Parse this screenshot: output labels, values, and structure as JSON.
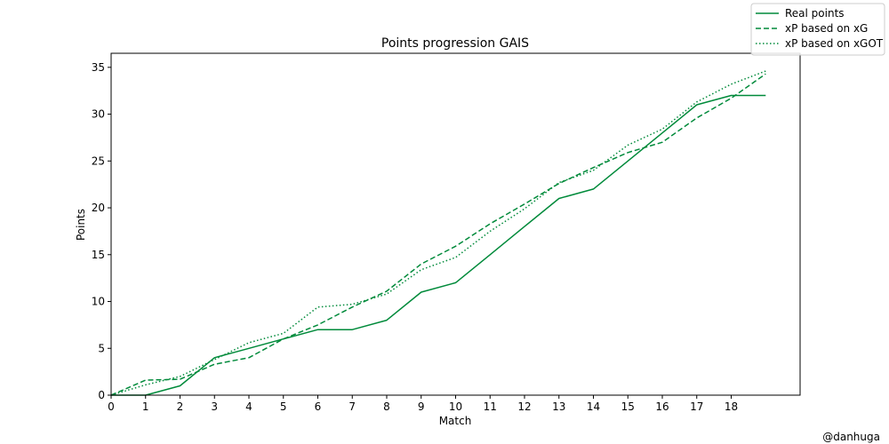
{
  "chart_data": {
    "type": "line",
    "title": "Points progression GAIS",
    "xlabel": "Match",
    "ylabel": "Points",
    "xlim": [
      0,
      20
    ],
    "ylim": [
      0,
      36.5
    ],
    "x_ticks": [
      0,
      1,
      2,
      3,
      4,
      5,
      6,
      7,
      8,
      9,
      10,
      11,
      12,
      13,
      14,
      15,
      16,
      17,
      18
    ],
    "y_ticks": [
      0,
      5,
      10,
      15,
      20,
      25,
      30,
      35
    ],
    "grid": false,
    "legend_position": "top-right",
    "line_color": "#008a3a",
    "series": [
      {
        "name": "Real points",
        "style": "solid",
        "x": [
          0,
          1,
          2,
          3,
          4,
          5,
          6,
          7,
          8,
          9,
          10,
          11,
          12,
          13,
          14,
          15,
          16,
          17,
          18,
          19
        ],
        "values": [
          0,
          0,
          1,
          4,
          5,
          6,
          7,
          7,
          8,
          11,
          12,
          15,
          18,
          21,
          22,
          25,
          28,
          31,
          32,
          32
        ]
      },
      {
        "name": "xP based on xG",
        "style": "dashed",
        "x": [
          0,
          1,
          2,
          3,
          4,
          5,
          6,
          7,
          8,
          9,
          10,
          11,
          12,
          13,
          14,
          15,
          16,
          17,
          18,
          19
        ],
        "values": [
          0,
          1.6,
          1.7,
          3.3,
          4.0,
          6.0,
          7.5,
          9.4,
          11.1,
          14.0,
          15.9,
          18.3,
          20.4,
          22.6,
          24.3,
          25.9,
          27.0,
          29.6,
          31.7,
          34.3
        ]
      },
      {
        "name": "xP based on xGOT",
        "style": "dotted",
        "x": [
          0,
          1,
          2,
          3,
          4,
          5,
          6,
          7,
          8,
          9,
          10,
          11,
          12,
          13,
          14,
          15,
          16,
          17,
          18,
          19
        ],
        "values": [
          0,
          1.1,
          2.0,
          3.8,
          5.6,
          6.6,
          9.4,
          9.7,
          10.8,
          13.4,
          14.7,
          17.5,
          19.9,
          22.7,
          24.0,
          26.7,
          28.4,
          31.3,
          33.2,
          34.6
        ]
      }
    ]
  },
  "watermark": "@danhuga"
}
